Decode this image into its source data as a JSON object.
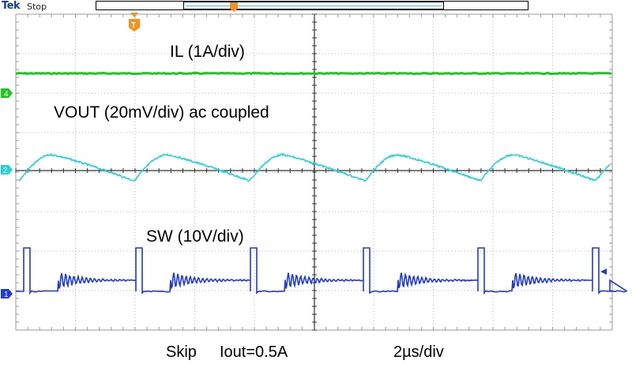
{
  "header": {
    "brand": "Tek",
    "run_state": "Stop"
  },
  "colors": {
    "grid": "#9a9a9a",
    "ch4_il": "#1ec81e",
    "ch2_vout": "#22d3dd",
    "ch1_sw": "#1f3ad8",
    "trigger": "#f2941c"
  },
  "channels": {
    "ch4": {
      "marker": "4",
      "label": "IL (1A/div)"
    },
    "ch2": {
      "marker": "2",
      "label": "VOUT (20mV/div) ac coupled"
    },
    "ch1": {
      "marker": "1",
      "label": "SW (10V/div)"
    }
  },
  "markers": {
    "trigger_top": "T"
  },
  "caption": {
    "mode": "Skip",
    "iout": "Iout=0.5A",
    "timebase": "2µs/div"
  }
}
